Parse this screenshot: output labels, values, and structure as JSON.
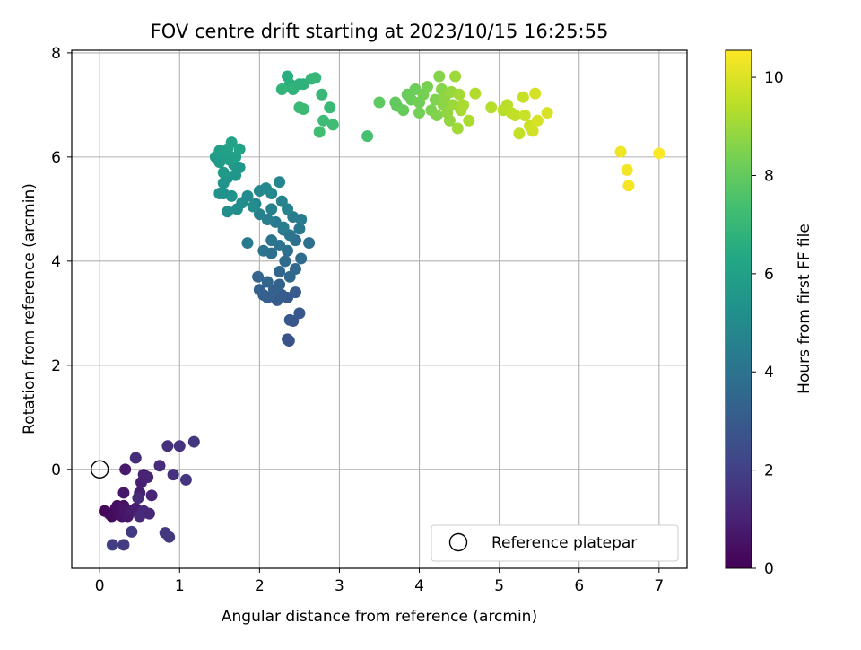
{
  "chart_data": {
    "type": "scatter",
    "title": "FOV centre drift starting at 2023/10/15 16:25:55",
    "xlabel": "Angular distance from reference (arcmin)",
    "ylabel": "Rotation from reference (arcmin)",
    "xlim": [
      -0.35,
      7.35
    ],
    "ylim": [
      -1.9,
      8.05
    ],
    "xticks": [
      0,
      1,
      2,
      3,
      4,
      5,
      6,
      7
    ],
    "yticks": [
      0,
      2,
      4,
      6,
      8
    ],
    "grid": true,
    "colormap": "viridis",
    "colorbar": {
      "label": "Hours from first FF file",
      "range": [
        0,
        10.55
      ],
      "ticks": [
        0,
        2,
        4,
        6,
        8,
        10
      ]
    },
    "legend": {
      "placement": "lower-right",
      "entries": [
        "Reference platepar"
      ]
    },
    "reference_point": {
      "x": 0,
      "y": 0,
      "style": "open-circle"
    },
    "series": [
      {
        "points": [
          [
            0.06,
            -0.8,
            0.2
          ],
          [
            0.12,
            -0.85,
            0.25
          ],
          [
            0.15,
            -0.9,
            0.3
          ],
          [
            0.2,
            -0.75,
            0.35
          ],
          [
            0.22,
            -0.7,
            0.4
          ],
          [
            0.25,
            -0.85,
            0.45
          ],
          [
            0.28,
            -0.9,
            0.5
          ],
          [
            0.3,
            -0.7,
            0.55
          ],
          [
            0.32,
            -0.8,
            0.6
          ],
          [
            0.35,
            -0.9,
            0.65
          ],
          [
            0.3,
            -0.45,
            0.7
          ],
          [
            0.32,
            0.0,
            0.75
          ],
          [
            0.4,
            -0.8,
            0.8
          ],
          [
            0.45,
            -0.75,
            0.85
          ],
          [
            0.5,
            -0.45,
            0.9
          ],
          [
            0.52,
            -0.25,
            0.95
          ],
          [
            0.55,
            -0.1,
            1.0
          ],
          [
            0.6,
            -0.15,
            1.05
          ],
          [
            0.65,
            -0.5,
            1.1
          ],
          [
            0.62,
            -0.85,
            1.15
          ],
          [
            0.55,
            -0.8,
            1.2
          ],
          [
            0.5,
            -0.9,
            1.25
          ],
          [
            0.48,
            -0.55,
            1.3
          ],
          [
            0.45,
            0.22,
            1.35
          ],
          [
            0.75,
            0.07,
            1.4
          ],
          [
            0.85,
            0.45,
            1.45
          ],
          [
            0.92,
            -0.1,
            1.5
          ],
          [
            1.0,
            0.45,
            1.55
          ],
          [
            1.08,
            -0.2,
            1.6
          ],
          [
            1.18,
            0.53,
            1.65
          ],
          [
            0.82,
            -1.22,
            1.7
          ],
          [
            0.87,
            -1.3,
            1.75
          ],
          [
            0.4,
            -1.2,
            1.8
          ],
          [
            0.3,
            -1.45,
            1.85
          ],
          [
            0.16,
            -1.45,
            1.9
          ],
          [
            2.37,
            2.47,
            2.7
          ],
          [
            2.35,
            2.5,
            2.75
          ],
          [
            2.42,
            2.85,
            2.8
          ],
          [
            2.38,
            2.87,
            2.85
          ],
          [
            2.5,
            3.0,
            2.9
          ],
          [
            2.35,
            3.3,
            2.95
          ],
          [
            2.45,
            3.4,
            3.0
          ],
          [
            2.22,
            3.25,
            3.05
          ],
          [
            2.28,
            3.35,
            3.1
          ],
          [
            2.05,
            3.35,
            3.15
          ],
          [
            2.1,
            3.3,
            3.2
          ],
          [
            2.0,
            3.45,
            3.25
          ],
          [
            2.18,
            3.45,
            3.3
          ],
          [
            2.25,
            3.55,
            3.35
          ],
          [
            1.98,
            3.7,
            3.4
          ],
          [
            2.1,
            3.6,
            3.45
          ],
          [
            2.25,
            3.8,
            3.5
          ],
          [
            2.38,
            3.7,
            3.55
          ],
          [
            2.45,
            3.85,
            3.6
          ],
          [
            2.52,
            4.05,
            3.65
          ],
          [
            2.32,
            4.0,
            3.7
          ],
          [
            2.15,
            4.15,
            3.75
          ],
          [
            2.35,
            4.2,
            3.8
          ],
          [
            2.45,
            4.4,
            3.85
          ],
          [
            2.62,
            4.35,
            3.9
          ],
          [
            2.25,
            4.3,
            3.95
          ],
          [
            2.15,
            4.4,
            4.0
          ],
          [
            2.05,
            4.2,
            4.05
          ],
          [
            2.3,
            4.6,
            4.1
          ],
          [
            2.38,
            4.5,
            4.15
          ],
          [
            2.5,
            4.62,
            4.2
          ],
          [
            1.85,
            4.35,
            4.25
          ],
          [
            2.2,
            4.75,
            4.3
          ],
          [
            2.42,
            4.85,
            4.35
          ],
          [
            2.52,
            4.8,
            4.4
          ],
          [
            2.3,
            4.65,
            4.45
          ],
          [
            2.1,
            4.8,
            4.5
          ],
          [
            2.0,
            4.9,
            4.55
          ],
          [
            2.15,
            5.0,
            4.6
          ],
          [
            2.28,
            5.15,
            4.65
          ],
          [
            2.35,
            5.0,
            4.7
          ],
          [
            1.95,
            5.1,
            4.75
          ],
          [
            2.25,
            5.52,
            4.8
          ],
          [
            2.0,
            5.35,
            4.85
          ],
          [
            2.08,
            5.4,
            4.9
          ],
          [
            2.15,
            5.3,
            4.95
          ],
          [
            1.85,
            5.25,
            5.0
          ],
          [
            1.78,
            5.12,
            5.05
          ],
          [
            1.92,
            5.05,
            5.1
          ],
          [
            1.72,
            5.0,
            5.15
          ],
          [
            1.6,
            4.95,
            5.2
          ],
          [
            1.55,
            5.3,
            5.25
          ],
          [
            1.65,
            5.25,
            5.3
          ],
          [
            1.5,
            5.3,
            5.35
          ],
          [
            1.55,
            5.5,
            5.4
          ],
          [
            1.6,
            5.6,
            5.45
          ],
          [
            1.7,
            5.65,
            5.5
          ],
          [
            1.75,
            5.8,
            5.55
          ],
          [
            1.68,
            5.85,
            5.6
          ],
          [
            1.55,
            5.7,
            5.65
          ],
          [
            1.5,
            5.9,
            5.7
          ],
          [
            1.45,
            6.0,
            5.75
          ],
          [
            1.55,
            6.05,
            5.8
          ],
          [
            1.62,
            5.95,
            5.85
          ],
          [
            1.7,
            6.0,
            5.9
          ],
          [
            1.5,
            6.12,
            5.95
          ],
          [
            1.6,
            6.15,
            6.0
          ],
          [
            1.65,
            6.28,
            6.05
          ],
          [
            1.75,
            6.15,
            6.1
          ],
          [
            2.35,
            7.55,
            6.6
          ],
          [
            2.38,
            7.4,
            6.65
          ],
          [
            2.5,
            7.4,
            6.7
          ],
          [
            2.55,
            7.4,
            6.75
          ],
          [
            2.42,
            7.3,
            6.8
          ],
          [
            2.28,
            7.3,
            6.85
          ],
          [
            2.65,
            7.5,
            6.9
          ],
          [
            2.7,
            7.52,
            6.95
          ],
          [
            2.78,
            7.2,
            7.0
          ],
          [
            2.88,
            6.95,
            7.05
          ],
          [
            2.5,
            6.95,
            7.1
          ],
          [
            2.55,
            6.92,
            7.15
          ],
          [
            2.8,
            6.7,
            7.2
          ],
          [
            2.92,
            6.62,
            7.25
          ],
          [
            2.75,
            6.48,
            7.3
          ],
          [
            3.35,
            6.4,
            7.4
          ],
          [
            3.5,
            7.05,
            7.9
          ],
          [
            3.7,
            7.05,
            7.95
          ],
          [
            3.72,
            6.98,
            8.0
          ],
          [
            3.8,
            6.9,
            8.05
          ],
          [
            3.85,
            7.2,
            8.1
          ],
          [
            3.9,
            7.1,
            8.15
          ],
          [
            3.95,
            7.3,
            8.2
          ],
          [
            4.0,
            7.05,
            8.25
          ],
          [
            4.0,
            6.85,
            8.3
          ],
          [
            4.05,
            7.2,
            8.35
          ],
          [
            4.1,
            7.35,
            8.4
          ],
          [
            4.15,
            6.9,
            8.45
          ],
          [
            4.2,
            7.1,
            8.5
          ],
          [
            4.22,
            6.8,
            8.55
          ],
          [
            4.25,
            7.55,
            8.6
          ],
          [
            4.28,
            7.3,
            8.65
          ],
          [
            4.3,
            7.0,
            8.7
          ],
          [
            4.32,
            7.15,
            8.75
          ],
          [
            4.35,
            6.85,
            8.8
          ],
          [
            4.38,
            6.7,
            8.85
          ],
          [
            4.4,
            7.25,
            8.9
          ],
          [
            4.42,
            7.0,
            8.95
          ],
          [
            4.45,
            7.55,
            9.0
          ],
          [
            4.48,
            6.55,
            9.05
          ],
          [
            4.5,
            7.2,
            9.1
          ],
          [
            4.52,
            6.9,
            9.15
          ],
          [
            4.55,
            7.0,
            9.2
          ],
          [
            4.62,
            6.7,
            9.25
          ],
          [
            4.7,
            7.22,
            9.3
          ],
          [
            4.9,
            6.95,
            9.35
          ],
          [
            5.05,
            6.9,
            9.4
          ],
          [
            5.1,
            7.0,
            9.45
          ],
          [
            5.15,
            6.85,
            9.5
          ],
          [
            5.2,
            6.8,
            9.55
          ],
          [
            5.25,
            6.45,
            9.6
          ],
          [
            5.3,
            7.15,
            9.65
          ],
          [
            5.32,
            6.8,
            9.7
          ],
          [
            5.38,
            6.6,
            9.75
          ],
          [
            5.42,
            6.5,
            9.8
          ],
          [
            5.45,
            7.22,
            9.85
          ],
          [
            5.48,
            6.7,
            9.9
          ],
          [
            5.6,
            6.85,
            9.95
          ],
          [
            6.52,
            6.1,
            10.3
          ],
          [
            6.6,
            5.75,
            10.35
          ],
          [
            6.62,
            5.45,
            10.4
          ],
          [
            7.0,
            6.07,
            10.5
          ]
        ]
      }
    ]
  }
}
